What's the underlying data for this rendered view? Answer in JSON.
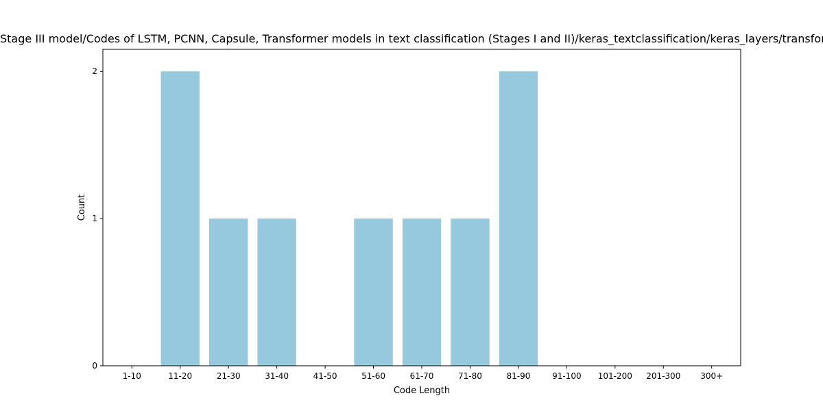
{
  "chart_data": {
    "type": "bar",
    "title": "/Stage III model/Codes of LSTM, PCNN, Capsule, Transformer models in text classification (Stages I and II)/keras_textclassification/keras_layers/transformer",
    "xlabel": "Code Length",
    "ylabel": "Count",
    "categories": [
      "1-10",
      "11-20",
      "21-30",
      "31-40",
      "41-50",
      "51-60",
      "61-70",
      "71-80",
      "81-90",
      "91-100",
      "101-200",
      "201-300",
      "300+"
    ],
    "values": [
      0,
      2,
      1,
      1,
      0,
      1,
      1,
      1,
      2,
      0,
      0,
      0,
      0
    ],
    "ylim": [
      0,
      2.15
    ],
    "yticks": [
      "0",
      "1",
      "2"
    ],
    "grid": false,
    "legend": "none",
    "colors": {
      "bar": "#96c9dd",
      "axis": "#000000",
      "text": "#000000"
    }
  }
}
